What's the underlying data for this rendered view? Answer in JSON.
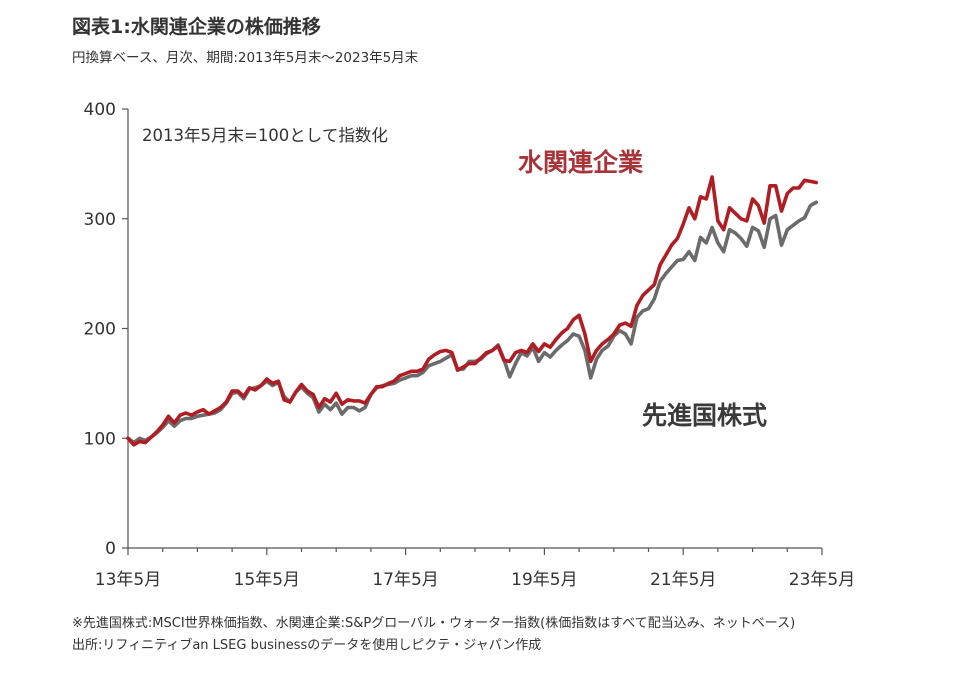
{
  "header": {
    "title": "図表1:水関連企業の株価推移",
    "subtitle": "円換算ベース、月次、期間:2013年5月末～2023年5月末"
  },
  "chart_data": {
    "type": "line",
    "note": "2013年5月末=100として指数化",
    "x_ticks": [
      "13年5月",
      "15年5月",
      "17年5月",
      "19年5月",
      "21年5月",
      "23年5月"
    ],
    "y_ticks": [
      "0",
      "100",
      "200",
      "300",
      "400"
    ],
    "ylim": [
      0,
      400
    ],
    "xlim": [
      0,
      120
    ],
    "series": [
      {
        "name": "水関連企業",
        "color": "#b01e24",
        "points": [
          [
            0,
            100
          ],
          [
            1,
            94
          ],
          [
            2,
            97
          ],
          [
            3,
            96
          ],
          [
            4,
            101
          ],
          [
            5,
            106
          ],
          [
            6,
            112
          ],
          [
            7,
            120
          ],
          [
            8,
            114
          ],
          [
            9,
            121
          ],
          [
            10,
            123
          ],
          [
            11,
            121
          ],
          [
            12,
            124
          ],
          [
            13,
            126
          ],
          [
            14,
            122
          ],
          [
            15,
            125
          ],
          [
            16,
            128
          ],
          [
            17,
            133
          ],
          [
            18,
            143
          ],
          [
            19,
            143
          ],
          [
            20,
            138
          ],
          [
            21,
            146
          ],
          [
            22,
            144
          ],
          [
            23,
            148
          ],
          [
            24,
            154
          ],
          [
            25,
            150
          ],
          [
            26,
            152
          ],
          [
            27,
            135
          ],
          [
            28,
            133
          ],
          [
            29,
            142
          ],
          [
            30,
            149
          ],
          [
            31,
            143
          ],
          [
            32,
            140
          ],
          [
            33,
            128
          ],
          [
            34,
            136
          ],
          [
            35,
            133
          ],
          [
            36,
            141
          ],
          [
            37,
            131
          ],
          [
            38,
            135
          ],
          [
            39,
            134
          ],
          [
            40,
            134
          ],
          [
            41,
            132
          ],
          [
            42,
            140
          ],
          [
            43,
            147
          ],
          [
            44,
            147
          ],
          [
            45,
            150
          ],
          [
            46,
            152
          ],
          [
            47,
            157
          ],
          [
            48,
            159
          ],
          [
            49,
            161
          ],
          [
            50,
            161
          ],
          [
            51,
            163
          ],
          [
            52,
            172
          ],
          [
            53,
            176
          ],
          [
            54,
            179
          ],
          [
            55,
            180
          ],
          [
            56,
            178
          ],
          [
            57,
            162
          ],
          [
            58,
            165
          ],
          [
            59,
            168
          ],
          [
            60,
            168
          ],
          [
            61,
            173
          ],
          [
            62,
            178
          ],
          [
            63,
            180
          ],
          [
            64,
            184
          ],
          [
            65,
            171
          ],
          [
            66,
            170
          ],
          [
            67,
            178
          ],
          [
            68,
            180
          ],
          [
            69,
            178
          ],
          [
            70,
            186
          ],
          [
            71,
            179
          ],
          [
            72,
            186
          ],
          [
            73,
            183
          ],
          [
            74,
            190
          ],
          [
            75,
            196
          ],
          [
            76,
            200
          ],
          [
            77,
            208
          ],
          [
            78,
            212
          ],
          [
            79,
            195
          ],
          [
            80,
            170
          ],
          [
            81,
            180
          ],
          [
            82,
            186
          ],
          [
            83,
            190
          ],
          [
            84,
            195
          ],
          [
            85,
            203
          ],
          [
            86,
            205
          ],
          [
            87,
            202
          ],
          [
            88,
            221
          ],
          [
            89,
            230
          ],
          [
            90,
            235
          ],
          [
            91,
            240
          ],
          [
            92,
            258
          ],
          [
            93,
            267
          ],
          [
            94,
            276
          ],
          [
            95,
            282
          ],
          [
            96,
            295
          ],
          [
            97,
            310
          ],
          [
            98,
            300
          ],
          [
            99,
            320
          ],
          [
            100,
            318
          ],
          [
            101,
            338
          ],
          [
            102,
            298
          ],
          [
            103,
            290
          ],
          [
            104,
            310
          ],
          [
            105,
            305
          ],
          [
            106,
            300
          ],
          [
            107,
            298
          ],
          [
            108,
            318
          ],
          [
            109,
            312
          ],
          [
            110,
            296
          ],
          [
            111,
            330
          ],
          [
            112,
            330
          ],
          [
            113,
            307
          ],
          [
            114,
            323
          ],
          [
            115,
            328
          ],
          [
            116,
            328
          ],
          [
            117,
            335
          ],
          [
            118,
            334
          ],
          [
            119,
            333
          ]
        ]
      },
      {
        "name": "先進国株式",
        "color": "#6b6b6b",
        "points": [
          [
            0,
            100
          ],
          [
            1,
            96
          ],
          [
            2,
            100
          ],
          [
            3,
            98
          ],
          [
            4,
            101
          ],
          [
            5,
            105
          ],
          [
            6,
            110
          ],
          [
            7,
            116
          ],
          [
            8,
            111
          ],
          [
            9,
            116
          ],
          [
            10,
            118
          ],
          [
            11,
            118
          ],
          [
            12,
            120
          ],
          [
            13,
            121
          ],
          [
            14,
            122
          ],
          [
            15,
            123
          ],
          [
            16,
            126
          ],
          [
            17,
            132
          ],
          [
            18,
            141
          ],
          [
            19,
            142
          ],
          [
            20,
            136
          ],
          [
            21,
            145
          ],
          [
            22,
            146
          ],
          [
            23,
            148
          ],
          [
            24,
            152
          ],
          [
            25,
            148
          ],
          [
            26,
            151
          ],
          [
            27,
            138
          ],
          [
            28,
            133
          ],
          [
            29,
            142
          ],
          [
            30,
            147
          ],
          [
            31,
            141
          ],
          [
            32,
            137
          ],
          [
            33,
            124
          ],
          [
            34,
            131
          ],
          [
            35,
            126
          ],
          [
            36,
            132
          ],
          [
            37,
            122
          ],
          [
            38,
            128
          ],
          [
            39,
            128
          ],
          [
            40,
            125
          ],
          [
            41,
            128
          ],
          [
            42,
            140
          ],
          [
            43,
            146
          ],
          [
            44,
            148
          ],
          [
            45,
            149
          ],
          [
            46,
            150
          ],
          [
            47,
            153
          ],
          [
            48,
            155
          ],
          [
            49,
            157
          ],
          [
            50,
            157
          ],
          [
            51,
            160
          ],
          [
            52,
            166
          ],
          [
            53,
            168
          ],
          [
            54,
            170
          ],
          [
            55,
            173
          ],
          [
            56,
            176
          ],
          [
            57,
            163
          ],
          [
            58,
            163
          ],
          [
            59,
            170
          ],
          [
            60,
            170
          ],
          [
            61,
            172
          ],
          [
            62,
            177
          ],
          [
            63,
            180
          ],
          [
            64,
            185
          ],
          [
            65,
            172
          ],
          [
            66,
            156
          ],
          [
            67,
            168
          ],
          [
            68,
            178
          ],
          [
            69,
            175
          ],
          [
            70,
            183
          ],
          [
            71,
            170
          ],
          [
            72,
            178
          ],
          [
            73,
            174
          ],
          [
            74,
            180
          ],
          [
            75,
            185
          ],
          [
            76,
            189
          ],
          [
            77,
            195
          ],
          [
            78,
            193
          ],
          [
            79,
            180
          ],
          [
            80,
            155
          ],
          [
            81,
            172
          ],
          [
            82,
            180
          ],
          [
            83,
            184
          ],
          [
            84,
            193
          ],
          [
            85,
            198
          ],
          [
            86,
            195
          ],
          [
            87,
            186
          ],
          [
            88,
            210
          ],
          [
            89,
            216
          ],
          [
            90,
            218
          ],
          [
            91,
            227
          ],
          [
            92,
            243
          ],
          [
            93,
            250
          ],
          [
            94,
            256
          ],
          [
            95,
            262
          ],
          [
            96,
            263
          ],
          [
            97,
            270
          ],
          [
            98,
            262
          ],
          [
            99,
            283
          ],
          [
            100,
            278
          ],
          [
            101,
            292
          ],
          [
            102,
            278
          ],
          [
            103,
            270
          ],
          [
            104,
            290
          ],
          [
            105,
            287
          ],
          [
            106,
            282
          ],
          [
            107,
            275
          ],
          [
            108,
            292
          ],
          [
            109,
            289
          ],
          [
            110,
            274
          ],
          [
            111,
            300
          ],
          [
            112,
            303
          ],
          [
            113,
            276
          ],
          [
            114,
            290
          ],
          [
            115,
            294
          ],
          [
            116,
            298
          ],
          [
            117,
            301
          ],
          [
            118,
            312
          ],
          [
            119,
            315
          ]
        ]
      }
    ]
  },
  "footer": {
    "note": "※先進国株式:MSCI世界株価指数、水関連企業:S&Pグローバル・ウォーター指数(株価指数はすべて配当込み、ネットベース)",
    "source": "出所:リフィニティブan LSEG businessのデータを使用しピクテ・ジャパン作成"
  }
}
